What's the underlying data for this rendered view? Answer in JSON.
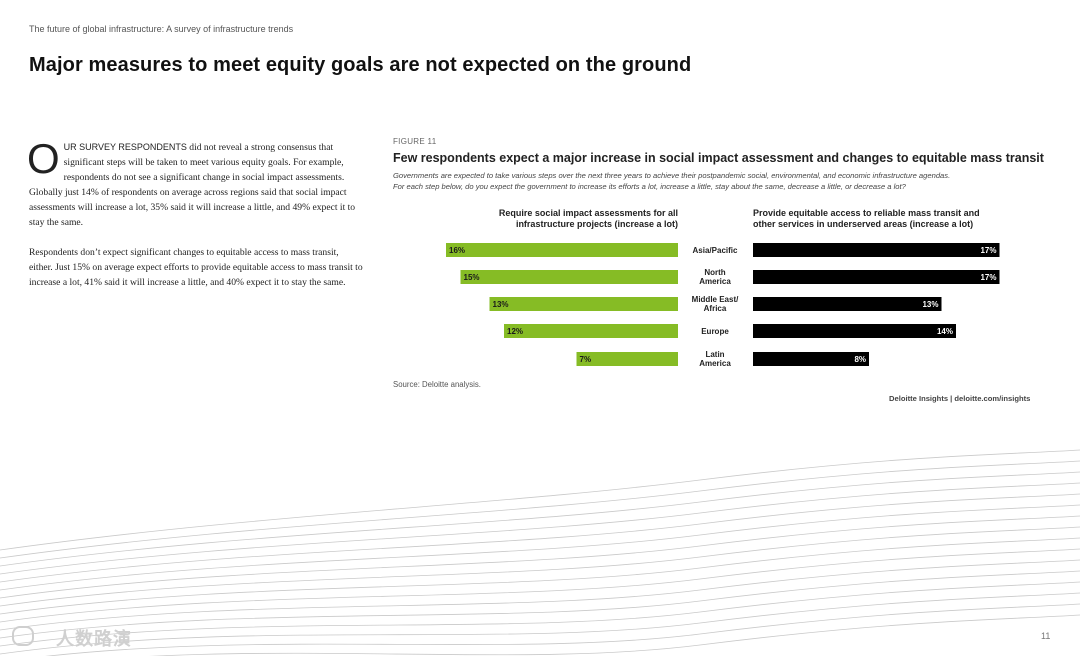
{
  "header": {
    "running_title": "The future of global infrastructure: A survey of infrastructure trends",
    "page_title": "Major measures to meet equity goals are not expected on the ground"
  },
  "body": {
    "dropcap": "O",
    "lead_caps": "UR SURVEY RESPONDENTS",
    "para1_rest": " did not reveal a strong consensus that significant steps will be taken to meet various equity goals. For example, respondents do not see a significant change in social impact assessments. Globally just 14% of respondents on average across regions said that social impact assessments will increase a lot, 35% said it will increase a little, and 49% expect it to stay the same.",
    "para2": "Respondents don’t expect significant changes to equitable access to mass transit, either. Just 15% on average expect efforts to provide equitable access to mass transit to increase a lot, 41% said it will increase a little, and 40% expect it to stay the same."
  },
  "figure": {
    "label": "FIGURE 11",
    "title": "Few respondents expect a major increase in social impact assessment and changes to equitable mass transit",
    "subtitle_line1": "Governments are expected to take various steps over the next three years to achieve their postpandemic social, environmental, and economic infrastructure agendas.",
    "subtitle_line2": "For each step below, do you expect the government to increase its efforts a lot, increase a little, stay about the same, decrease a little, or decrease a lot?",
    "source": "Source: Deloitte analysis.",
    "credit": "Deloitte Insights | deloitte.com/insights"
  },
  "chart_data": {
    "type": "bar",
    "categories": [
      [
        "Asia/Pacific"
      ],
      [
        "North",
        "America"
      ],
      [
        "Middle East/",
        "Africa"
      ],
      [
        "Europe"
      ],
      [
        "Latin",
        "America"
      ]
    ],
    "series": [
      {
        "name": "Require social impact assessments for all infrastructure projects (increase a lot)",
        "values": [
          16,
          15,
          13,
          12,
          7
        ],
        "color": "#86bc25",
        "label_color": "#1a1a1a"
      },
      {
        "name": "Provide equitable access to reliable mass transit and other services in underserved areas (increase a lot)",
        "values": [
          17,
          17,
          13,
          14,
          8
        ],
        "color": "#000000",
        "label_color": "#ffffff"
      }
    ],
    "panel_titles": [
      [
        "Require social impact assessments for all",
        "infrastructure projects (increase a lot)"
      ],
      [
        "Provide equitable access to reliable mass transit and",
        "other services in underserved areas (increase a lot)"
      ]
    ],
    "value_suffix": "%"
  },
  "footer": {
    "page_number": "11",
    "watermark_text": "人数路演"
  }
}
